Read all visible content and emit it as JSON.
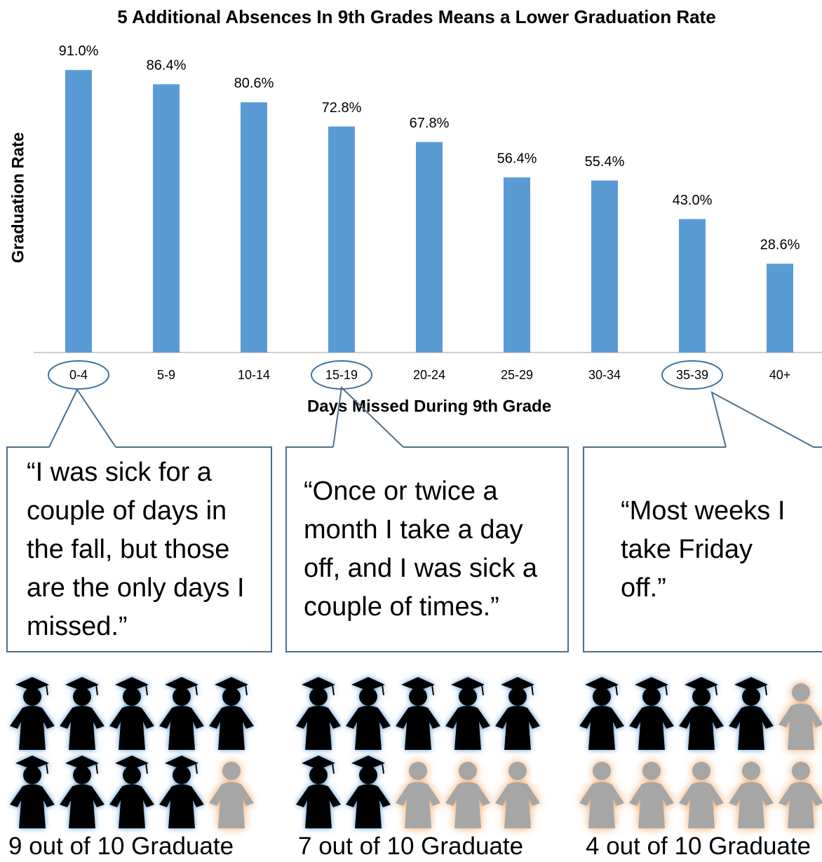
{
  "chart_data": {
    "type": "bar",
    "title": "5 Additional Absences In 9th Grades Means a Lower Graduation Rate",
    "x_label": "Days Missed During 9th Grade",
    "y_label": "Graduation Rate",
    "categories": [
      "0-4",
      "5-9",
      "10-14",
      "15-19",
      "20-24",
      "25-29",
      "30-34",
      "35-39",
      "40+"
    ],
    "values": [
      91.0,
      86.4,
      80.6,
      72.8,
      67.8,
      56.4,
      55.4,
      43.0,
      28.6
    ],
    "value_labels": [
      "91.0%",
      "86.4%",
      "80.6%",
      "72.8%",
      "67.8%",
      "56.4%",
      "55.4%",
      "43.0%",
      "28.6%"
    ],
    "color": "#5b9bd5",
    "ylim": [
      0,
      100
    ]
  },
  "callouts": [
    {
      "quote": "“I was sick for a couple of days in the fall, but those are the only days I missed.”",
      "caption": "9 out of 10 Graduate",
      "graduates": 9,
      "total": 10
    },
    {
      "quote": "“Once or twice a month I take a day off, and I was sick a couple of times.”",
      "caption": "7 out of 10 Graduate",
      "graduates": 7,
      "total": 10
    },
    {
      "quote": "“Most weeks I take Friday off.”",
      "caption": "4 out of 10 Graduate",
      "graduates": 4,
      "total": 10
    }
  ]
}
